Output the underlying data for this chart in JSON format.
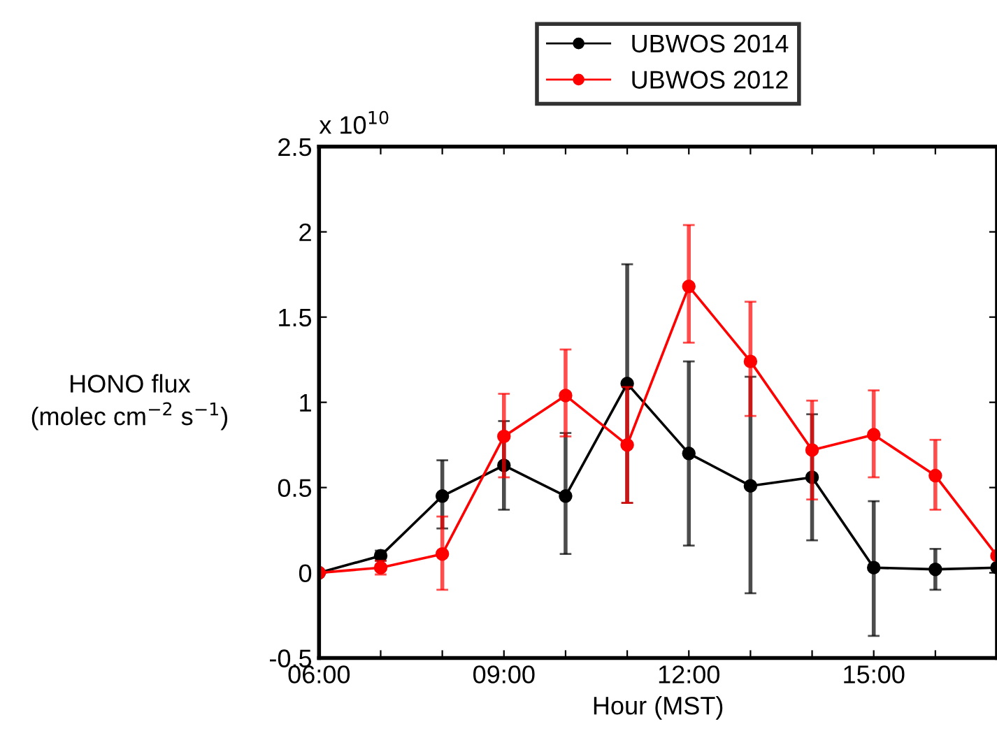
{
  "chart_data": {
    "type": "line",
    "xlabel": "Hour (MST)",
    "ylabel": "HONO flux\n(molec cm$^{−2}$ s$^{−1}$)",
    "x": [
      6,
      7,
      8,
      9,
      10,
      11,
      12,
      13,
      14,
      15,
      16,
      17
    ],
    "series": [
      {
        "name": "UBWOS 2014",
        "color": "#000000",
        "values": [
          0.0,
          0.1,
          0.45,
          0.63,
          0.45,
          1.11,
          0.7,
          0.51,
          0.56,
          0.03,
          0.02,
          0.03
        ],
        "errors": [
          null,
          [
            0.07,
            0.13
          ],
          [
            0.26,
            0.66
          ],
          [
            0.37,
            0.89
          ],
          [
            0.11,
            0.82
          ],
          [
            0.41,
            1.81
          ],
          [
            0.16,
            1.24
          ],
          [
            -0.12,
            1.15
          ],
          [
            0.19,
            0.93
          ],
          [
            -0.37,
            0.42
          ],
          [
            -0.1,
            0.14
          ],
          null
        ]
      },
      {
        "name": "UBWOS 2012",
        "color": "#ff0000",
        "values": [
          0.0,
          0.03,
          0.11,
          0.8,
          1.04,
          0.75,
          1.68,
          1.24,
          0.72,
          0.81,
          0.57,
          0.1
        ],
        "errors": [
          null,
          [
            -0.01,
            0.07
          ],
          [
            -0.1,
            0.33
          ],
          [
            0.56,
            1.05
          ],
          [
            0.8,
            1.31
          ],
          [
            0.41,
            1.09
          ],
          [
            1.35,
            2.04
          ],
          [
            0.92,
            1.59
          ],
          [
            0.43,
            1.01
          ],
          [
            0.56,
            1.07
          ],
          [
            0.37,
            0.78
          ],
          null
        ]
      }
    ],
    "xlim": [
      6,
      17
    ],
    "xticks": [
      {
        "value": 6,
        "label": "06:00"
      },
      {
        "value": 7,
        "label": null
      },
      {
        "value": 8,
        "label": null
      },
      {
        "value": 9,
        "label": "09:00"
      },
      {
        "value": 10,
        "label": null
      },
      {
        "value": 11,
        "label": null
      },
      {
        "value": 12,
        "label": "12:00"
      },
      {
        "value": 13,
        "label": null
      },
      {
        "value": 14,
        "label": null
      },
      {
        "value": 15,
        "label": "15:00"
      },
      {
        "value": 16,
        "label": null
      },
      {
        "value": 17,
        "label": null
      }
    ],
    "ylim": [
      -0.5,
      2.5
    ],
    "yticks": [
      -0.5,
      0,
      0.5,
      1,
      1.5,
      2,
      2.5
    ],
    "annotations": [
      "x 10$^{10}$"
    ],
    "legend": "top",
    "marker": "circle",
    "line_style": "solid",
    "grid": false
  }
}
